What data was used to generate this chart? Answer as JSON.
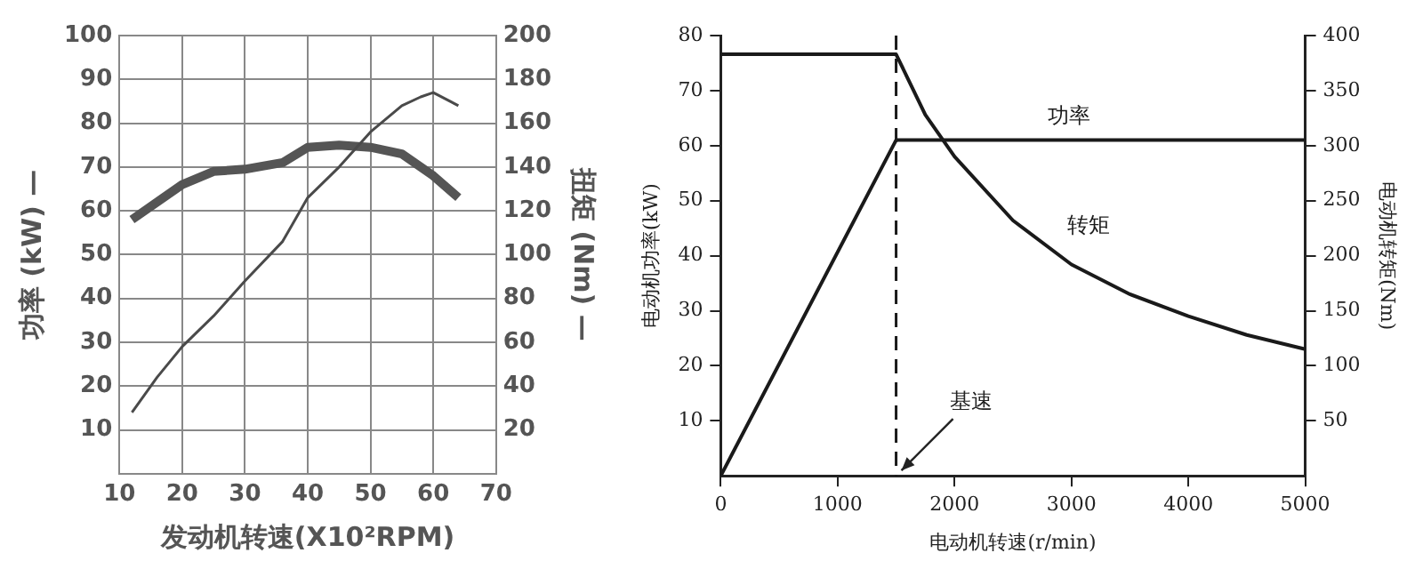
{
  "chart_data": [
    {
      "type": "line",
      "xlabel": "发动机转速(X10²RPM)",
      "ylabel": "功率 (kW) —",
      "y2label": "扭矩 (Nm) —",
      "xlim": [
        10,
        70
      ],
      "xticks": [
        10,
        20,
        30,
        40,
        50,
        60,
        70
      ],
      "ylim": [
        0,
        100
      ],
      "yticks": [
        10,
        20,
        30,
        40,
        50,
        60,
        70,
        80,
        90,
        100
      ],
      "y2lim": [
        0,
        200
      ],
      "y2ticks": [
        20,
        40,
        60,
        80,
        100,
        120,
        140,
        160,
        180,
        200
      ],
      "grid": true,
      "series": [
        {
          "color": "#4a4a4a",
          "x": [
            12,
            16,
            20,
            25,
            30,
            36,
            40,
            45,
            50,
            55,
            58,
            60,
            64
          ],
          "values": [
            14,
            22,
            29,
            36,
            44,
            53,
            63,
            70,
            78,
            84,
            86,
            87,
            84
          ]
        },
        {
          "color": "#555555",
          "axis": "y2",
          "x": [
            12,
            17,
            20,
            25,
            30,
            36,
            40,
            45,
            50,
            55,
            60,
            64
          ],
          "values": [
            116,
            126,
            132,
            138,
            139,
            142,
            149,
            150,
            149,
            146,
            136,
            126
          ]
        }
      ]
    },
    {
      "type": "line",
      "xlabel": "电动机转速(r/min)",
      "ylabel": "电动机功率(kW)",
      "y2label": "电动机转矩(Nm)",
      "xlim": [
        0,
        5000
      ],
      "xticks": [
        0,
        1000,
        2000,
        3000,
        4000,
        5000
      ],
      "ylim": [
        0,
        80
      ],
      "yticks": [
        10,
        20,
        30,
        40,
        50,
        60,
        70,
        80
      ],
      "y2lim": [
        0,
        400
      ],
      "y2ticks": [
        50,
        100,
        150,
        200,
        250,
        300,
        350,
        400
      ],
      "series": [
        {
          "name": "功率",
          "color": "#1a1a1a",
          "x": [
            0,
            1500,
            5000
          ],
          "values": [
            0,
            61,
            61
          ]
        },
        {
          "name": "转矩",
          "color": "#1a1a1a",
          "axis": "y2",
          "x": [
            0,
            1500,
            1750,
            2000,
            2500,
            3000,
            3500,
            4000,
            4500,
            5000
          ],
          "values": [
            383,
            383,
            328,
            290,
            232,
            192,
            165,
            145,
            128,
            115
          ]
        }
      ],
      "ref_lines": [
        {
          "axis": "x",
          "value": 1500,
          "color": "#1a1a1a",
          "line_style": "dashed"
        }
      ],
      "annotations": [
        {
          "text": "基速",
          "x": 1500,
          "y": 0
        }
      ]
    }
  ]
}
